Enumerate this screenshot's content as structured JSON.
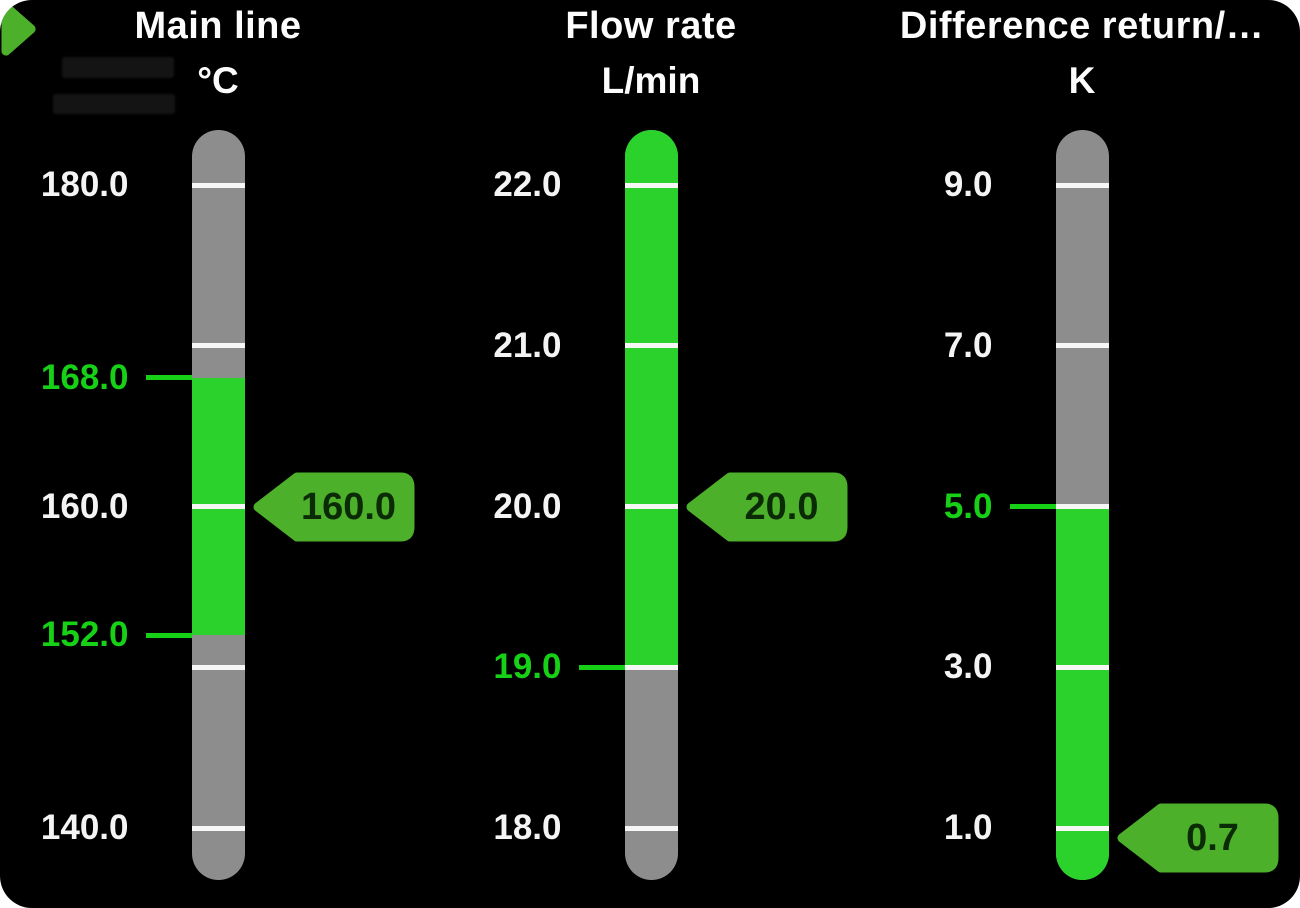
{
  "panel": {
    "background": "#000000",
    "page_background": "#ffffff"
  },
  "colors": {
    "bar_gray": "#8d8d8d",
    "zone_green": "#2bd22b",
    "indicator_green": "#4db02a",
    "limit_label_green": "#17d117",
    "tick_white": "#f6f6f6",
    "label_white": "#f4f4f4",
    "badge_text": "#0b2a06",
    "title_white": "#fcfcfc"
  },
  "chart_data": {
    "type": "gauge",
    "orientation": "vertical",
    "gauges": [
      {
        "title": "Main line",
        "unit": "°C",
        "axis_max": 180.0,
        "axis_min": 140.0,
        "ticks": [
          {
            "value": 180.0,
            "label": "180.0"
          },
          {
            "value": 170.0,
            "label": ""
          },
          {
            "value": 160.0,
            "label": "160.0"
          },
          {
            "value": 150.0,
            "label": ""
          },
          {
            "value": 140.0,
            "label": "140.0"
          }
        ],
        "limit_markers": [
          {
            "value": 168.0,
            "label": "168.0"
          },
          {
            "value": 152.0,
            "label": "152.0"
          }
        ],
        "green_zone": {
          "low": 152.0,
          "high": 168.0
        },
        "value": 160.0,
        "value_label": "160.0",
        "left_pointer": true
      },
      {
        "title": "Flow rate",
        "unit": "L/min",
        "axis_max": 22.0,
        "axis_min": 18.0,
        "ticks": [
          {
            "value": 22.0,
            "label": "22.0"
          },
          {
            "value": 21.0,
            "label": "21.0"
          },
          {
            "value": 20.0,
            "label": "20.0"
          },
          {
            "value": 19.0,
            "label": "19.0",
            "limit": true
          },
          {
            "value": 18.0,
            "label": "18.0"
          }
        ],
        "limit_markers": [],
        "green_zone": {
          "low": 19.0,
          "high": null
        },
        "value": 20.0,
        "value_label": "20.0",
        "left_pointer": true
      },
      {
        "title": "Difference return/…",
        "unit": "K",
        "axis_max": 9.0,
        "axis_min": 1.0,
        "ticks": [
          {
            "value": 9.0,
            "label": "9.0"
          },
          {
            "value": 7.0,
            "label": "7.0"
          },
          {
            "value": 5.0,
            "label": "5.0",
            "limit": true
          },
          {
            "value": 3.0,
            "label": "3.0"
          },
          {
            "value": 1.0,
            "label": "1.0"
          }
        ],
        "limit_markers": [],
        "green_zone": {
          "low": null,
          "high": 5.0
        },
        "value": 0.7,
        "value_label": "0.7",
        "left_pointer": false
      }
    ]
  }
}
